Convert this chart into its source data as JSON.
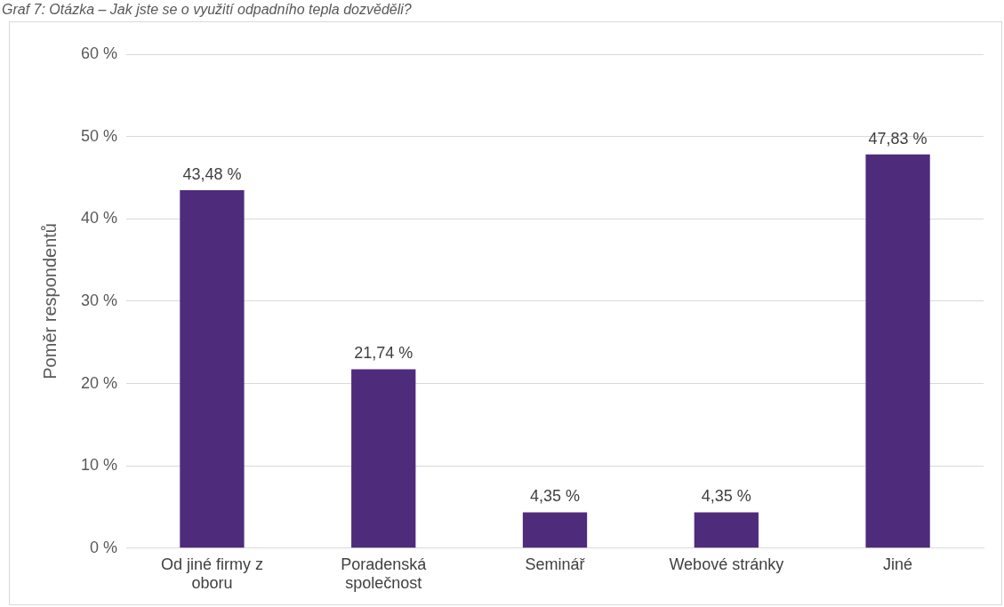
{
  "chart_data": {
    "type": "bar",
    "title": "Graf 7: Otázka – Jak jste se o využití odpadního tepla dozvěděli?",
    "ylabel": "Poměr respondentů",
    "categories": [
      "Od jiné firmy z oboru",
      "Poradenská společnost",
      "Seminář",
      "Webové stránky",
      "Jiné"
    ],
    "values": [
      43.48,
      21.74,
      4.35,
      4.35,
      47.83
    ],
    "color": "#4f2b7c",
    "value_labels": [
      "43,48 %",
      "21,74 %",
      "4,35 %",
      "4,35 %",
      "47,83 %"
    ],
    "ylim": [
      0,
      60
    ],
    "yticks": [
      {
        "value": 0,
        "label": "0 %"
      },
      {
        "value": 10,
        "label": "10 %"
      },
      {
        "value": 20,
        "label": "20 %"
      },
      {
        "value": 30,
        "label": "30 %"
      },
      {
        "value": 40,
        "label": "40 %"
      },
      {
        "value": 50,
        "label": "50 %"
      },
      {
        "value": 60,
        "label": "60 %"
      }
    ],
    "grid": "y",
    "legend": false
  }
}
